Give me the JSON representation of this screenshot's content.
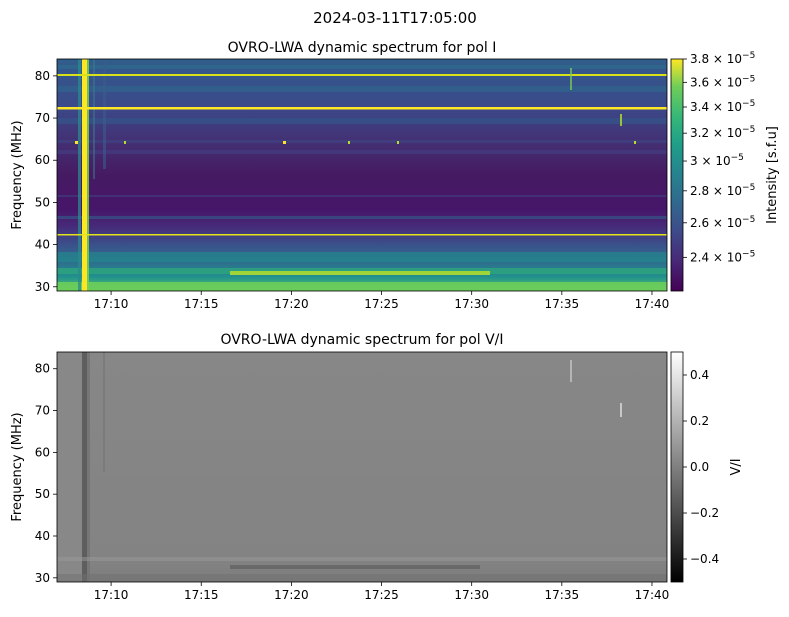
{
  "suptitle": "2024-03-11T17:05:00",
  "chart_data": [
    {
      "type": "heatmap",
      "title": "OVRO-LWA dynamic spectrum for pol I",
      "xlabel": "",
      "ylabel": "Frequency (MHz)",
      "colormap": "viridis",
      "xlim": [
        "17:07:00",
        "17:40:50"
      ],
      "ylim": [
        29,
        84
      ],
      "xticks": [
        "17:10",
        "17:15",
        "17:20",
        "17:25",
        "17:30",
        "17:35",
        "17:40"
      ],
      "yticks": [
        30,
        40,
        50,
        60,
        70,
        80
      ],
      "colorbar": {
        "label": "Intensity [s.f.u]",
        "scale": "log",
        "range": [
          2.22e-05,
          3.8e-05
        ],
        "ticks": [
          {
            "value": 3.8e-05,
            "mant": "3.8"
          },
          {
            "value": 3.6e-05,
            "mant": "3.6"
          },
          {
            "value": 3.4e-05,
            "mant": "3.4"
          },
          {
            "value": 3.2e-05,
            "mant": "3.2"
          },
          {
            "value": 3e-05,
            "mant": "3"
          },
          {
            "value": 2.8e-05,
            "mant": "2.8"
          },
          {
            "value": 2.6e-05,
            "mant": "2.6"
          },
          {
            "value": 2.4e-05,
            "mant": "2.4"
          }
        ],
        "exponent_label": "× 10",
        "exponent": "−5"
      },
      "features": {
        "bright_horizontal_lines_mhz": [
          80,
          72,
          42
        ],
        "burst_vertical_near": "17:08:40",
        "faint_vertical_near": [
          "17:09:20",
          "17:09:40"
        ],
        "bright_low_band_mhz": [
          29,
          33
        ]
      }
    },
    {
      "type": "heatmap",
      "title": "OVRO-LWA dynamic spectrum for pol V/I",
      "xlabel": "",
      "ylabel": "Frequency (MHz)",
      "colormap": "gray",
      "xlim": [
        "17:07:00",
        "17:40:50"
      ],
      "ylim": [
        29,
        84
      ],
      "xticks": [
        "17:10",
        "17:15",
        "17:20",
        "17:25",
        "17:30",
        "17:35",
        "17:40"
      ],
      "yticks": [
        30,
        40,
        50,
        60,
        70,
        80
      ],
      "colorbar": {
        "label": "V/I",
        "scale": "linear",
        "range": [
          -0.5,
          0.5
        ],
        "ticks": [
          {
            "value": 0.4,
            "label": "0.4"
          },
          {
            "value": 0.2,
            "label": "0.2"
          },
          {
            "value": 0.0,
            "label": "0.0"
          },
          {
            "value": -0.2,
            "label": "−0.2"
          },
          {
            "value": -0.4,
            "label": "−0.4"
          }
        ]
      }
    }
  ]
}
